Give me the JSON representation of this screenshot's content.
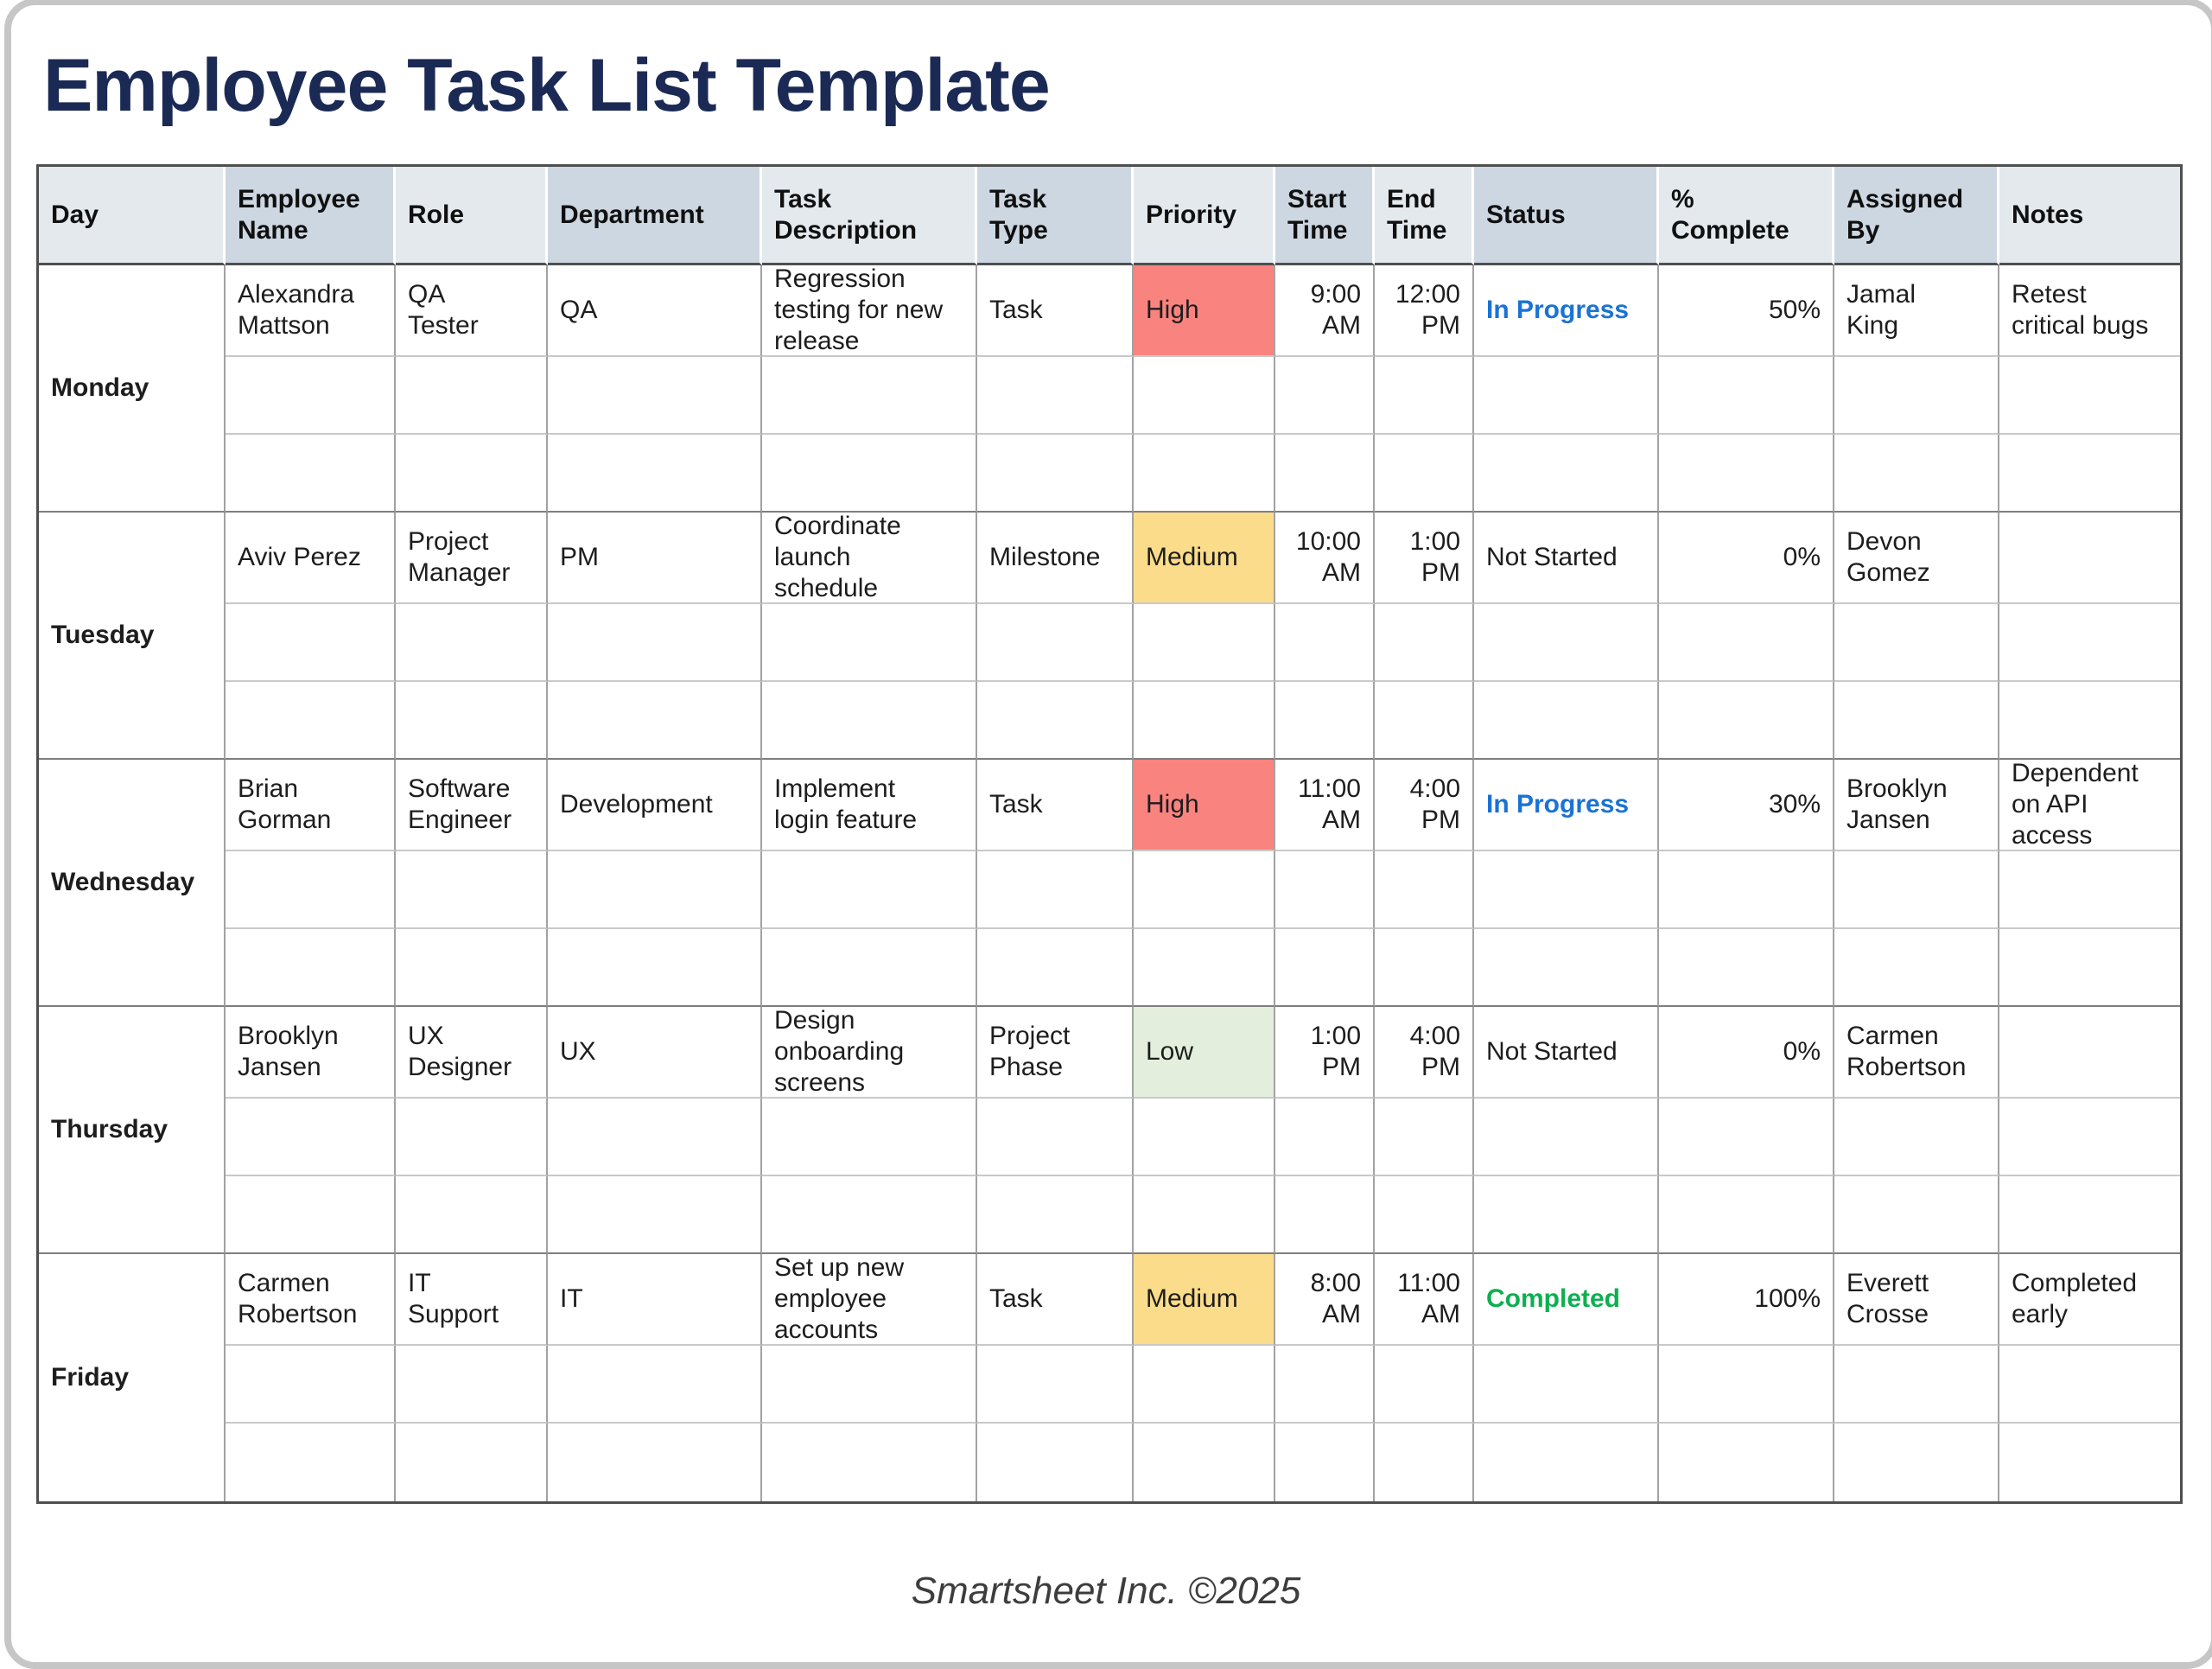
{
  "title": "Employee Task List Template",
  "footer": "Smartsheet Inc. ©2025",
  "colors": {
    "title": "#1b2a55",
    "header_shade_light": "#e4e9ee",
    "header_shade_dark": "#cdd7e1",
    "priority": {
      "High": "#f9837f",
      "Medium": "#fbdc8a",
      "Low": "#e3efdc"
    },
    "status": {
      "In Progress": "#1a73d4",
      "Completed": "#0eaf50",
      "Not Started": "#1d1d1d"
    },
    "status_bold": [
      "In Progress",
      "Completed"
    ]
  },
  "table": {
    "columns": [
      {
        "key": "day",
        "label": "Day",
        "shade": "light"
      },
      {
        "key": "employee_name",
        "label": "Employee Name",
        "shade": "dark"
      },
      {
        "key": "role",
        "label": "Role",
        "shade": "light"
      },
      {
        "key": "department",
        "label": "Department",
        "shade": "dark"
      },
      {
        "key": "task_description",
        "label": "Task Description",
        "shade": "light"
      },
      {
        "key": "task_type",
        "label": "Task Type",
        "shade": "dark"
      },
      {
        "key": "priority",
        "label": "Priority",
        "shade": "light"
      },
      {
        "key": "start_time",
        "label": "Start Time",
        "shade": "dark"
      },
      {
        "key": "end_time",
        "label": "End Time",
        "shade": "light"
      },
      {
        "key": "status",
        "label": "Status",
        "shade": "dark"
      },
      {
        "key": "percent_complete",
        "label": "% Complete",
        "shade": "light"
      },
      {
        "key": "assigned_by",
        "label": "Assigned By",
        "shade": "dark"
      },
      {
        "key": "notes",
        "label": "Notes",
        "shade": "light"
      }
    ],
    "groups": [
      {
        "day": "Monday",
        "task": {
          "employee_name": "Alexandra Mattson",
          "role": "QA Tester",
          "department": "QA",
          "task_description": "Regression testing for new release",
          "task_type": "Task",
          "priority": "High",
          "start_time": "9:00 AM",
          "end_time": "12:00 PM",
          "status": "In Progress",
          "percent_complete": "50%",
          "assigned_by": "Jamal King",
          "notes": "Retest critical bugs"
        },
        "empty_rows": 2
      },
      {
        "day": "Tuesday",
        "task": {
          "employee_name": "Aviv Perez",
          "role": "Project Manager",
          "department": "PM",
          "task_description": "Coordinate launch schedule",
          "task_type": "Milestone",
          "priority": "Medium",
          "start_time": "10:00 AM",
          "end_time": "1:00 PM",
          "status": "Not Started",
          "percent_complete": "0%",
          "assigned_by": "Devon Gomez",
          "notes": ""
        },
        "empty_rows": 2
      },
      {
        "day": "Wednesday",
        "task": {
          "employee_name": "Brian Gorman",
          "role": "Software Engineer",
          "department": "Development",
          "task_description": "Implement login feature",
          "task_type": "Task",
          "priority": "High",
          "start_time": "11:00 AM",
          "end_time": "4:00 PM",
          "status": "In Progress",
          "percent_complete": "30%",
          "assigned_by": "Brooklyn Jansen",
          "notes": "Dependent on API access"
        },
        "empty_rows": 2
      },
      {
        "day": "Thursday",
        "task": {
          "employee_name": "Brooklyn Jansen",
          "role": "UX Designer",
          "department": "UX",
          "task_description": "Design onboarding screens",
          "task_type": "Project Phase",
          "priority": "Low",
          "start_time": "1:00 PM",
          "end_time": "4:00 PM",
          "status": "Not Started",
          "percent_complete": "0%",
          "assigned_by": "Carmen Robertson",
          "notes": ""
        },
        "empty_rows": 2
      },
      {
        "day": "Friday",
        "task": {
          "employee_name": "Carmen Robertson",
          "role": "IT Support",
          "department": "IT",
          "task_description": "Set up new employee accounts",
          "task_type": "Task",
          "priority": "Medium",
          "start_time": "8:00 AM",
          "end_time": "11:00 AM",
          "status": "Completed",
          "percent_complete": "100%",
          "assigned_by": "Everett Crosse",
          "notes": "Completed early"
        },
        "empty_rows": 2
      }
    ]
  }
}
